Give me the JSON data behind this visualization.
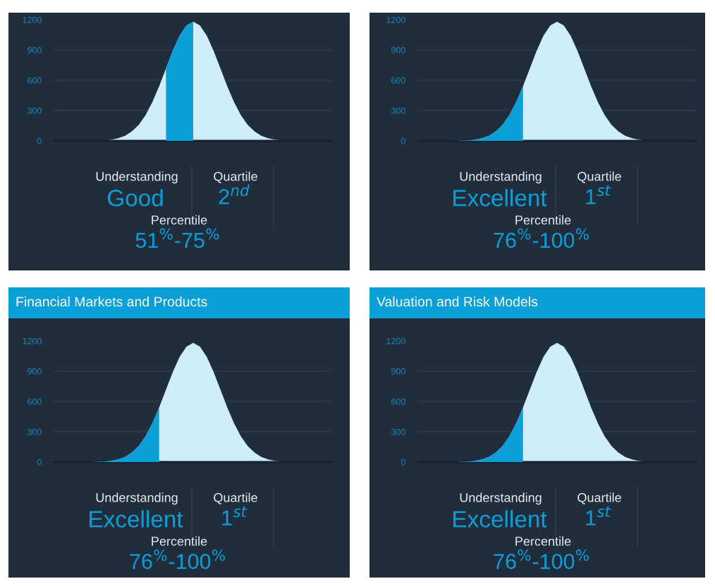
{
  "chart_data": [
    {
      "type": "area",
      "categories": [
        null,
        null,
        null,
        null,
        null,
        null,
        null,
        null,
        null,
        null,
        null,
        null,
        null,
        null,
        null,
        null,
        null,
        null,
        null,
        null,
        null,
        null,
        null,
        null,
        null,
        null,
        null,
        null,
        null,
        null,
        null,
        null,
        null,
        null,
        null,
        null,
        null,
        null,
        null,
        null,
        null
      ],
      "series": [
        {
          "color": "#cdeefa",
          "values": [
            0,
            0,
            0,
            0,
            0,
            0,
            3,
            6,
            13,
            27,
            51,
            94,
            159,
            255,
            383,
            541,
            716,
            891,
            1041,
            1143,
            1180,
            1143,
            1041,
            891,
            716,
            541,
            383,
            255,
            159,
            94,
            51,
            27,
            13,
            6,
            3,
            0,
            0,
            0,
            0,
            0,
            0
          ]
        },
        {
          "color": "#0b9fd8",
          "values": [
            null,
            null,
            null,
            null,
            null,
            null,
            null,
            null,
            null,
            null,
            null,
            null,
            null,
            null,
            null,
            null,
            716,
            891,
            1041,
            1143,
            1180,
            null,
            null,
            null,
            null,
            null,
            null,
            null,
            null,
            null,
            null,
            null,
            null,
            null,
            null,
            null,
            null,
            null,
            null,
            null,
            null
          ]
        }
      ],
      "ylim": [
        0,
        1200
      ],
      "yticks": [
        0,
        300,
        600,
        900,
        1200
      ],
      "grid": "y",
      "annotations": [
        "Understanding",
        "Good",
        "Quartile",
        "2$^{nd}$",
        "Percentile",
        "51$^{%}$-75$^{%}$"
      ]
    },
    {
      "type": "area",
      "categories": [
        null,
        null,
        null,
        null,
        null,
        null,
        null,
        null,
        null,
        null,
        null,
        null,
        null,
        null,
        null,
        null,
        null,
        null,
        null,
        null,
        null,
        null,
        null,
        null,
        null,
        null,
        null,
        null,
        null,
        null,
        null,
        null,
        null,
        null,
        null,
        null,
        null,
        null,
        null,
        null,
        null
      ],
      "series": [
        {
          "color": "#cdeefa",
          "values": [
            0,
            0,
            0,
            0,
            0,
            0,
            3,
            6,
            13,
            27,
            51,
            94,
            159,
            255,
            383,
            541,
            716,
            891,
            1041,
            1143,
            1180,
            1143,
            1041,
            891,
            716,
            541,
            383,
            255,
            159,
            94,
            51,
            27,
            13,
            6,
            3,
            0,
            0,
            0,
            0,
            0,
            0
          ]
        },
        {
          "color": "#0b9fd8",
          "values": [
            0,
            0,
            0,
            0,
            0,
            0,
            3,
            6,
            13,
            27,
            51,
            94,
            159,
            255,
            383,
            541,
            null,
            null,
            null,
            null,
            null,
            null,
            null,
            null,
            null,
            null,
            null,
            null,
            null,
            null,
            null,
            null,
            null,
            null,
            null,
            null,
            null,
            null,
            null,
            null,
            null
          ]
        }
      ],
      "ylim": [
        0,
        1200
      ],
      "yticks": [
        0,
        300,
        600,
        900,
        1200
      ],
      "grid": "y",
      "annotations": [
        "Understanding",
        "Excellent",
        "Quartile",
        "1$^{st}$",
        "Percentile",
        "76$^{%}$-100$^{%}$"
      ]
    },
    {
      "type": "area",
      "title": "Financial Markets and Products",
      "categories": [
        null,
        null,
        null,
        null,
        null,
        null,
        null,
        null,
        null,
        null,
        null,
        null,
        null,
        null,
        null,
        null,
        null,
        null,
        null,
        null,
        null,
        null,
        null,
        null,
        null,
        null,
        null,
        null,
        null,
        null,
        null,
        null,
        null,
        null,
        null,
        null,
        null,
        null,
        null,
        null,
        null
      ],
      "series": [
        {
          "color": "#cdeefa",
          "values": [
            0,
            0,
            0,
            0,
            0,
            0,
            3,
            6,
            13,
            27,
            51,
            94,
            159,
            255,
            383,
            541,
            716,
            891,
            1041,
            1143,
            1180,
            1143,
            1041,
            891,
            716,
            541,
            383,
            255,
            159,
            94,
            51,
            27,
            13,
            6,
            3,
            0,
            0,
            0,
            0,
            0,
            0
          ]
        },
        {
          "color": "#0b9fd8",
          "values": [
            0,
            0,
            0,
            0,
            0,
            0,
            3,
            6,
            13,
            27,
            51,
            94,
            159,
            255,
            383,
            541,
            null,
            null,
            null,
            null,
            null,
            null,
            null,
            null,
            null,
            null,
            null,
            null,
            null,
            null,
            null,
            null,
            null,
            null,
            null,
            null,
            null,
            null,
            null,
            null,
            null
          ]
        }
      ],
      "ylim": [
        0,
        1200
      ],
      "yticks": [
        0,
        300,
        600,
        900,
        1200
      ],
      "grid": "y",
      "annotations": [
        "Understanding",
        "Excellent",
        "Quartile",
        "1$^{st}$",
        "Percentile",
        "76$^{%}$-100$^{%}$"
      ]
    },
    {
      "type": "area",
      "title": "Valuation and Risk Models",
      "categories": [
        null,
        null,
        null,
        null,
        null,
        null,
        null,
        null,
        null,
        null,
        null,
        null,
        null,
        null,
        null,
        null,
        null,
        null,
        null,
        null,
        null,
        null,
        null,
        null,
        null,
        null,
        null,
        null,
        null,
        null,
        null,
        null,
        null,
        null,
        null,
        null,
        null,
        null,
        null,
        null,
        null
      ],
      "series": [
        {
          "color": "#cdeefa",
          "values": [
            0,
            0,
            0,
            0,
            0,
            0,
            3,
            6,
            13,
            27,
            51,
            94,
            159,
            255,
            383,
            541,
            716,
            891,
            1041,
            1143,
            1180,
            1143,
            1041,
            891,
            716,
            541,
            383,
            255,
            159,
            94,
            51,
            27,
            13,
            6,
            3,
            0,
            0,
            0,
            0,
            0,
            0
          ]
        },
        {
          "color": "#0b9fd8",
          "values": [
            0,
            0,
            0,
            0,
            0,
            0,
            3,
            6,
            13,
            27,
            51,
            94,
            159,
            255,
            383,
            541,
            null,
            null,
            null,
            null,
            null,
            null,
            null,
            null,
            null,
            null,
            null,
            null,
            null,
            null,
            null,
            null,
            null,
            null,
            null,
            null,
            null,
            null,
            null,
            null,
            null
          ]
        }
      ],
      "ylim": [
        0,
        1200
      ],
      "yticks": [
        0,
        300,
        600,
        900,
        1200
      ],
      "grid": "y",
      "annotations": [
        "Understanding",
        "Excellent",
        "Quartile",
        "1$^{st}$",
        "Percentile",
        "76$^{%}$-100$^{%}$"
      ]
    }
  ]
}
